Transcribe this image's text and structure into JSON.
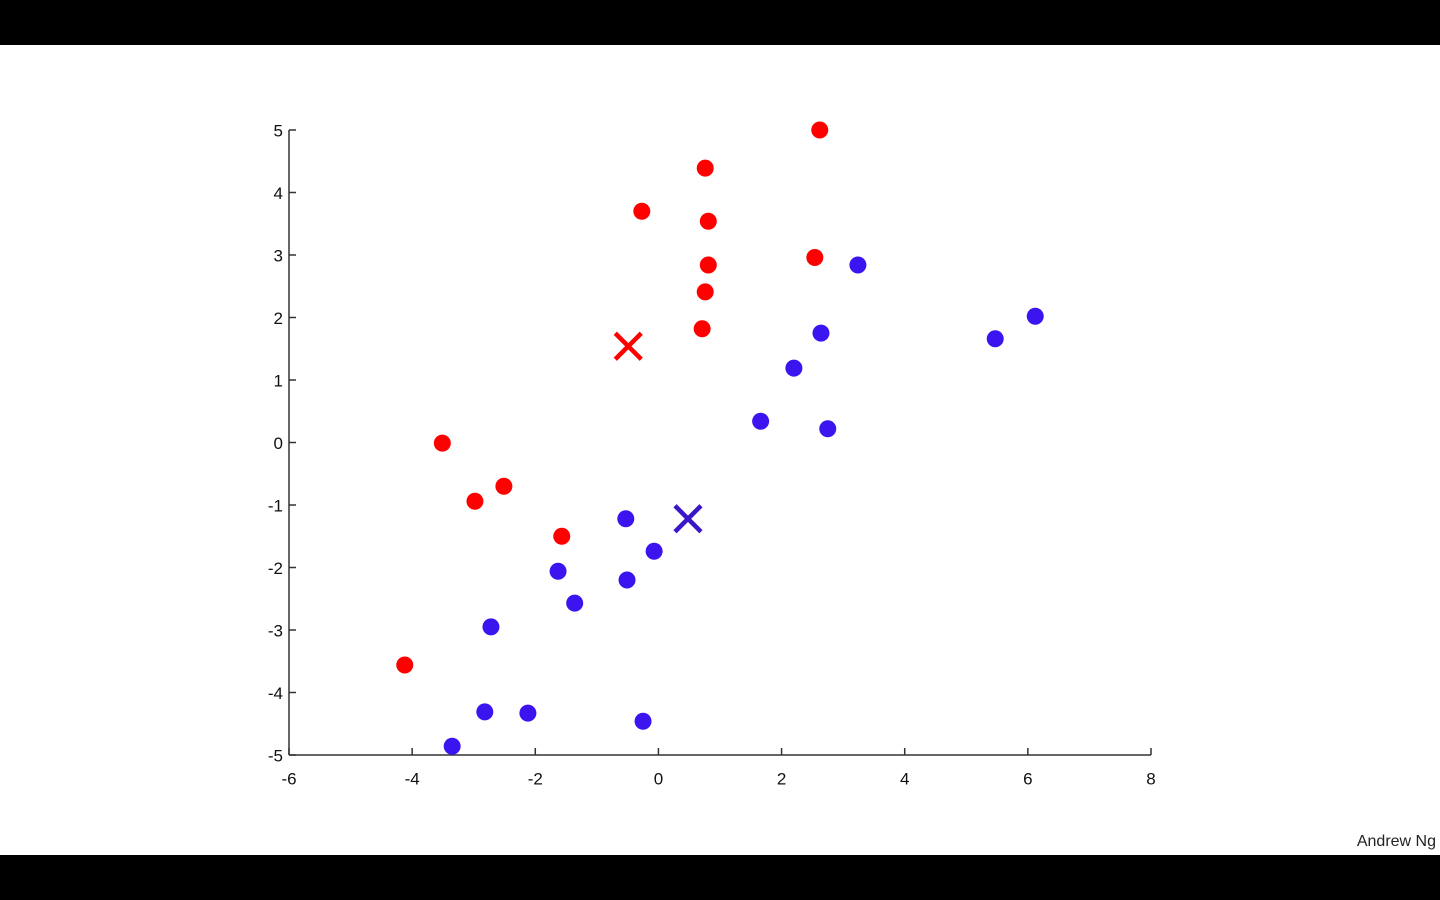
{
  "footer": "Andrew Ng",
  "chart_data": {
    "type": "scatter",
    "xlim": [
      -6,
      8
    ],
    "ylim": [
      -5,
      5
    ],
    "xticks": [
      -6,
      -4,
      -2,
      0,
      2,
      4,
      6,
      8
    ],
    "yticks": [
      -5,
      -4,
      -3,
      -2,
      -1,
      0,
      1,
      2,
      3,
      4,
      5
    ],
    "series": [
      {
        "color": "#ff0000",
        "marker": "dot",
        "x": [
          2.62,
          0.76,
          -0.27,
          0.81,
          0.81,
          2.54,
          0.76,
          0.71,
          -3.51,
          -2.98,
          -2.51,
          -1.57,
          -4.12
        ],
        "y": [
          5.0,
          4.39,
          3.7,
          3.54,
          2.84,
          2.96,
          2.41,
          1.82,
          -0.01,
          -0.94,
          -0.7,
          -1.5,
          -3.56
        ]
      },
      {
        "color": "#3c14f0",
        "marker": "dot",
        "x": [
          3.24,
          6.12,
          5.47,
          2.64,
          2.2,
          1.66,
          2.75,
          -0.53,
          -0.07,
          -1.63,
          -0.51,
          -1.36,
          -2.72,
          -2.82,
          -2.12,
          -0.25,
          -3.35
        ],
        "y": [
          2.84,
          2.02,
          1.66,
          1.75,
          1.19,
          0.34,
          0.22,
          -1.22,
          -1.74,
          -2.06,
          -2.2,
          -2.57,
          -2.95,
          -4.31,
          -4.33,
          -4.46,
          -4.86
        ]
      },
      {
        "color": "#ff0000",
        "marker": "x",
        "x": [
          -0.49
        ],
        "y": [
          1.54
        ]
      },
      {
        "color": "#3a16c8",
        "marker": "x",
        "x": [
          0.48
        ],
        "y": [
          -1.22
        ]
      }
    ]
  }
}
